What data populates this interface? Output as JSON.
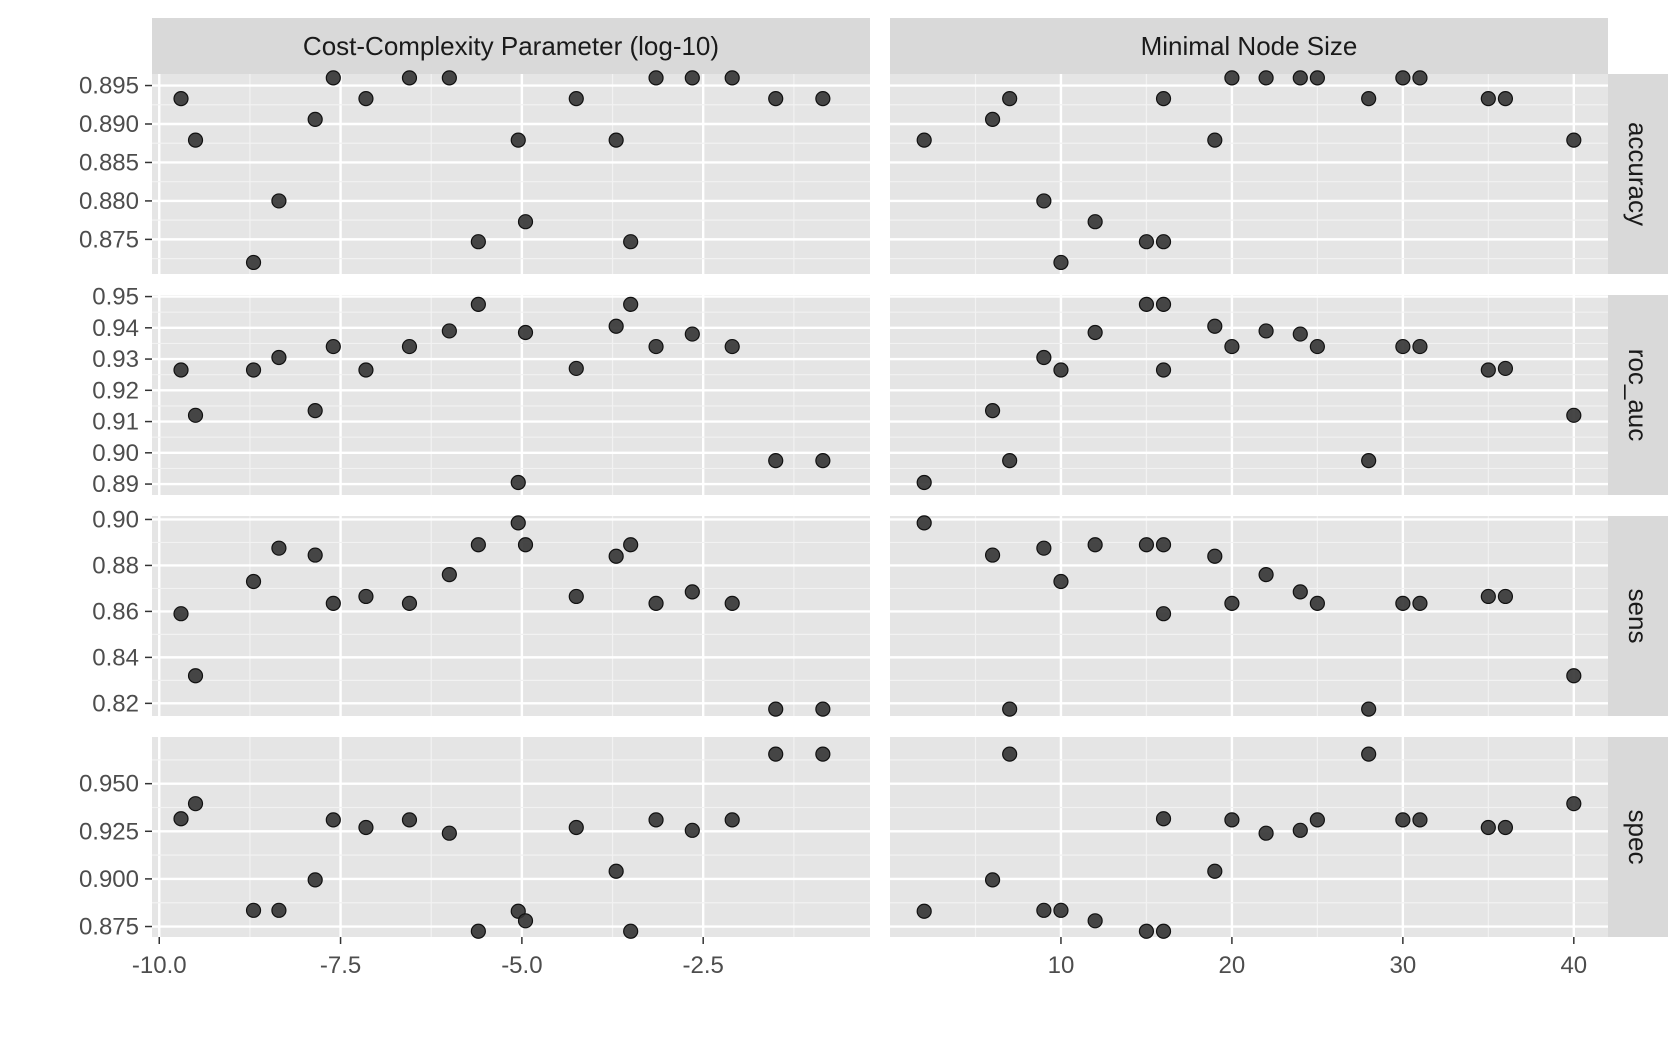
{
  "chart_data": {
    "type": "scatter",
    "layout": "facet-grid",
    "point_color": "#333333",
    "panel_background": "#e5e5e5",
    "strip_background": "#d9d9d9",
    "grid": true,
    "columns": [
      {
        "label": "Cost-Complexity Parameter (log-10)",
        "xlim": [
          -10.1,
          -0.2
        ],
        "ticks": [
          -10,
          -7.5,
          -5,
          -2.5
        ],
        "tick_labels": [
          "-10.0",
          "-7.5",
          "-5.0",
          "-2.5"
        ]
      },
      {
        "label": "Minimal Node Size",
        "xlim": [
          0,
          42
        ],
        "ticks": [
          10,
          20,
          30,
          40
        ],
        "tick_labels": [
          "10",
          "20",
          "30",
          "40"
        ]
      }
    ],
    "rows": [
      {
        "label": "accuracy",
        "ylim": [
          0.8705,
          0.8965
        ],
        "ticks": [
          0.875,
          0.88,
          0.885,
          0.89,
          0.895
        ],
        "tick_labels": [
          "0.875",
          "0.880",
          "0.885",
          "0.890",
          "0.895"
        ]
      },
      {
        "label": "roc_auc",
        "ylim": [
          0.8865,
          0.9505
        ],
        "ticks": [
          0.89,
          0.9,
          0.91,
          0.92,
          0.93,
          0.94,
          0.95
        ],
        "tick_labels": [
          "0.89",
          "0.90",
          "0.91",
          "0.92",
          "0.93",
          "0.94",
          "0.95"
        ]
      },
      {
        "label": "sens",
        "ylim": [
          0.8145,
          0.9015
        ],
        "ticks": [
          0.82,
          0.84,
          0.86,
          0.88,
          0.9
        ],
        "tick_labels": [
          "0.82",
          "0.84",
          "0.86",
          "0.88",
          "0.90"
        ]
      },
      {
        "label": "spec",
        "ylim": [
          0.8695,
          0.9745
        ],
        "ticks": [
          0.875,
          0.9,
          0.925,
          0.95
        ],
        "tick_labels": [
          "0.875",
          "0.900",
          "0.925",
          "0.950"
        ]
      }
    ],
    "candidates": [
      {
        "cost_log10": -9.7,
        "min_n": 16,
        "accuracy": 0.8933,
        "roc_auc": 0.9265,
        "sens": 0.859,
        "spec": 0.9316
      },
      {
        "cost_log10": -9.5,
        "min_n": 40,
        "accuracy": 0.8879,
        "roc_auc": 0.912,
        "sens": 0.832,
        "spec": 0.9395
      },
      {
        "cost_log10": -8.7,
        "min_n": 10,
        "accuracy": 0.872,
        "roc_auc": 0.9265,
        "sens": 0.873,
        "spec": 0.8835
      },
      {
        "cost_log10": -8.35,
        "min_n": 9,
        "accuracy": 0.88,
        "roc_auc": 0.9305,
        "sens": 0.8875,
        "spec": 0.8835
      },
      {
        "cost_log10": -7.85,
        "min_n": 6,
        "accuracy": 0.8906,
        "roc_auc": 0.9135,
        "sens": 0.8845,
        "spec": 0.8995
      },
      {
        "cost_log10": -7.6,
        "min_n": 20,
        "accuracy": 0.896,
        "roc_auc": 0.934,
        "sens": 0.8635,
        "spec": 0.931
      },
      {
        "cost_log10": -7.15,
        "min_n": 35,
        "accuracy": 0.8933,
        "roc_auc": 0.9265,
        "sens": 0.8665,
        "spec": 0.927
      },
      {
        "cost_log10": -6.55,
        "min_n": 30,
        "accuracy": 0.896,
        "roc_auc": 0.934,
        "sens": 0.8635,
        "spec": 0.931
      },
      {
        "cost_log10": -6.0,
        "min_n": 22,
        "accuracy": 0.896,
        "roc_auc": 0.939,
        "sens": 0.876,
        "spec": 0.924
      },
      {
        "cost_log10": -5.6,
        "min_n": 15,
        "accuracy": 0.8747,
        "roc_auc": 0.9475,
        "sens": 0.889,
        "spec": 0.8725
      },
      {
        "cost_log10": -5.05,
        "min_n": 2,
        "accuracy": 0.8879,
        "roc_auc": 0.8905,
        "sens": 0.8985,
        "spec": 0.883
      },
      {
        "cost_log10": -4.95,
        "min_n": 12,
        "accuracy": 0.8773,
        "roc_auc": 0.9385,
        "sens": 0.889,
        "spec": 0.878
      },
      {
        "cost_log10": -4.25,
        "min_n": 36,
        "accuracy": 0.8933,
        "roc_auc": 0.927,
        "sens": 0.8665,
        "spec": 0.927
      },
      {
        "cost_log10": -3.7,
        "min_n": 19,
        "accuracy": 0.8879,
        "roc_auc": 0.9405,
        "sens": 0.884,
        "spec": 0.904
      },
      {
        "cost_log10": -3.5,
        "min_n": 16,
        "accuracy": 0.8747,
        "roc_auc": 0.9475,
        "sens": 0.889,
        "spec": 0.8725
      },
      {
        "cost_log10": -3.15,
        "min_n": 31,
        "accuracy": 0.896,
        "roc_auc": 0.934,
        "sens": 0.8635,
        "spec": 0.931
      },
      {
        "cost_log10": -2.65,
        "min_n": 24,
        "accuracy": 0.896,
        "roc_auc": 0.938,
        "sens": 0.8685,
        "spec": 0.9255
      },
      {
        "cost_log10": -2.1,
        "min_n": 25,
        "accuracy": 0.896,
        "roc_auc": 0.934,
        "sens": 0.8635,
        "spec": 0.931
      },
      {
        "cost_log10": -1.5,
        "min_n": 28,
        "accuracy": 0.8933,
        "roc_auc": 0.8975,
        "sens": 0.8175,
        "spec": 0.9655
      },
      {
        "cost_log10": -0.85,
        "min_n": 7,
        "accuracy": 0.8933,
        "roc_auc": 0.8975,
        "sens": 0.8175,
        "spec": 0.9655
      }
    ]
  }
}
